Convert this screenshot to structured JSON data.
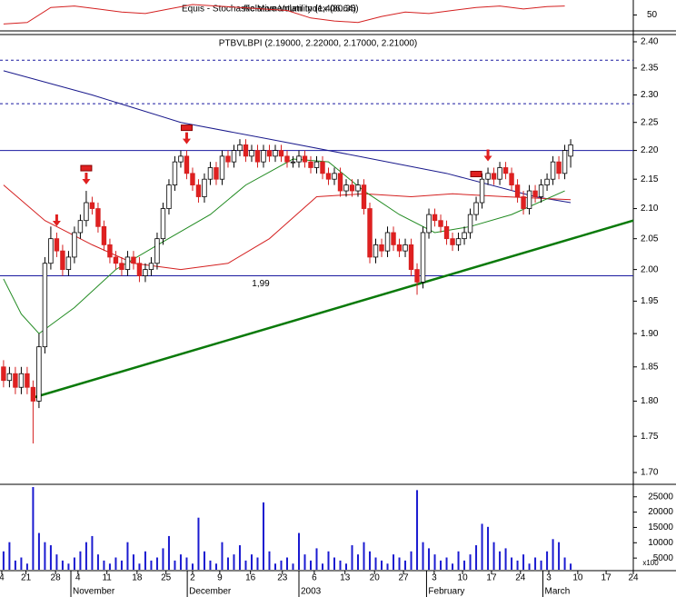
{
  "chart_data": {
    "type": "candlestick",
    "title": "PTBVLBPI (2.19000, 2.22000, 2.17000, 2.21000)",
    "indicator_titles": [
      "Equis - Stochastic Momentum Index (80.35)",
      "Relative Volatility (1,406.64)"
    ],
    "log_scale": true,
    "xlim": [
      -0.6,
      106.6
    ],
    "ylim": [
      1.7,
      2.4
    ],
    "yticks": [
      {
        "value": 2.4,
        "label": "2.40"
      },
      2.35,
      {
        "value": 2.3,
        "label": "2.30"
      },
      2.25,
      {
        "value": 2.2,
        "label": "2.20"
      },
      2.15,
      {
        "value": 2.1,
        "label": "2.10"
      },
      2.05,
      {
        "value": 2.0,
        "label": "2.00"
      },
      1.95,
      {
        "value": 1.9,
        "label": "1.90"
      },
      1.85,
      {
        "value": 1.8,
        "label": "1.80"
      },
      1.75,
      {
        "value": 1.7,
        "label": "1.70"
      }
    ],
    "xticks": [
      {
        "value": -0.3,
        "label": "4"
      },
      {
        "value": 3.8,
        "label": "21"
      },
      {
        "value": 8.8,
        "label": "28"
      },
      {
        "value": 12.6,
        "label": "4"
      },
      {
        "value": 17.5,
        "label": "11"
      },
      {
        "value": 22.6,
        "label": "18"
      },
      {
        "value": 27.5,
        "label": "25"
      },
      {
        "value": 32,
        "label": "2"
      },
      {
        "value": 36.6,
        "label": "9"
      },
      {
        "value": 41.8,
        "label": "16"
      },
      {
        "value": 47.2,
        "label": "23"
      },
      {
        "value": 52.6,
        "label": "6"
      },
      {
        "value": 57.8,
        "label": "13"
      },
      {
        "value": 62.8,
        "label": "20"
      },
      {
        "value": 67.7,
        "label": "27"
      },
      {
        "value": 72.9,
        "label": "3"
      },
      {
        "value": 77.7,
        "label": "10"
      },
      {
        "value": 82.6,
        "label": "17"
      },
      {
        "value": 87.5,
        "label": "24"
      },
      {
        "value": 92.3,
        "label": "3"
      },
      {
        "value": 97.2,
        "label": "10"
      },
      {
        "value": 102,
        "label": "17"
      },
      {
        "value": 106.6,
        "label": "24"
      }
    ],
    "months": [
      {
        "value": 11.4,
        "label": "November"
      },
      {
        "value": 31.1,
        "label": "December"
      },
      {
        "value": 50.0,
        "label": "2003"
      },
      {
        "value": 71.6,
        "label": "February"
      },
      {
        "value": 91.3,
        "label": "March"
      }
    ],
    "open": [
      1.85,
      1.83,
      1.84,
      1.82,
      1.84,
      1.82,
      1.8,
      1.88,
      2.01,
      2.05,
      2.03,
      2.0,
      2.02,
      2.06,
      2.08,
      2.11,
      2.1,
      2.07,
      2.04,
      2.02,
      2.01,
      2.0,
      2.02,
      2.01,
      1.99,
      2.0,
      2.01,
      2.05,
      2.1,
      2.14,
      2.18,
      2.19,
      2.16,
      2.14,
      2.12,
      2.15,
      2.17,
      2.15,
      2.19,
      2.18,
      2.2,
      2.21,
      2.19,
      2.2,
      2.18,
      2.2,
      2.19,
      2.2,
      2.19,
      2.18,
      2.18,
      2.19,
      2.18,
      2.17,
      2.18,
      2.16,
      2.15,
      2.16,
      2.13,
      2.14,
      2.13,
      2.14,
      2.1,
      2.02,
      2.04,
      2.03,
      2.06,
      2.04,
      2.03,
      2.04,
      2.0,
      1.98,
      2.06,
      2.09,
      2.08,
      2.07,
      2.05,
      2.04,
      2.05,
      2.06,
      2.09,
      2.11,
      2.15,
      2.16,
      2.15,
      2.17,
      2.16,
      2.14,
      2.12,
      2.1,
      2.13,
      2.12,
      2.14,
      2.15,
      2.18,
      2.16,
      2.19
    ],
    "high": [
      1.86,
      1.85,
      1.85,
      1.85,
      1.85,
      1.83,
      1.9,
      2.02,
      2.07,
      2.06,
      2.04,
      2.03,
      2.07,
      2.09,
      2.13,
      2.12,
      2.11,
      2.08,
      2.05,
      2.03,
      2.02,
      2.03,
      2.03,
      2.02,
      2.01,
      2.02,
      2.06,
      2.11,
      2.15,
      2.19,
      2.2,
      2.2,
      2.17,
      2.15,
      2.16,
      2.18,
      2.18,
      2.2,
      2.2,
      2.21,
      2.22,
      2.22,
      2.21,
      2.21,
      2.21,
      2.21,
      2.21,
      2.21,
      2.2,
      2.19,
      2.2,
      2.2,
      2.19,
      2.19,
      2.19,
      2.17,
      2.17,
      2.17,
      2.15,
      2.15,
      2.15,
      2.15,
      2.11,
      2.05,
      2.05,
      2.07,
      2.07,
      2.05,
      2.05,
      2.05,
      2.01,
      2.07,
      2.1,
      2.1,
      2.09,
      2.08,
      2.06,
      2.06,
      2.07,
      2.1,
      2.12,
      2.16,
      2.17,
      2.17,
      2.18,
      2.18,
      2.17,
      2.15,
      2.13,
      2.14,
      2.14,
      2.15,
      2.16,
      2.19,
      2.19,
      2.21,
      2.22
    ],
    "low": [
      1.82,
      1.82,
      1.81,
      1.81,
      1.81,
      1.74,
      1.79,
      1.87,
      2.0,
      2.02,
      1.99,
      1.99,
      2.01,
      2.05,
      2.07,
      2.09,
      2.06,
      2.03,
      2.01,
      2.0,
      1.99,
      1.99,
      2.0,
      1.98,
      1.98,
      1.99,
      2.0,
      2.04,
      2.09,
      2.13,
      2.17,
      2.15,
      2.13,
      2.11,
      2.11,
      2.14,
      2.14,
      2.14,
      2.17,
      2.17,
      2.19,
      2.18,
      2.18,
      2.17,
      2.17,
      2.18,
      2.18,
      2.18,
      2.17,
      2.17,
      2.17,
      2.17,
      2.16,
      2.16,
      2.15,
      2.14,
      2.14,
      2.12,
      2.12,
      2.12,
      2.12,
      2.09,
      2.01,
      2.01,
      2.02,
      2.02,
      2.03,
      2.02,
      2.02,
      1.99,
      1.96,
      1.97,
      2.05,
      2.07,
      2.06,
      2.04,
      2.03,
      2.03,
      2.04,
      2.05,
      2.08,
      2.1,
      2.14,
      2.14,
      2.14,
      2.15,
      2.13,
      2.11,
      2.09,
      2.09,
      2.11,
      2.11,
      2.13,
      2.14,
      2.15,
      2.15,
      2.17
    ],
    "close": [
      1.83,
      1.84,
      1.82,
      1.84,
      1.82,
      1.8,
      1.88,
      2.01,
      2.05,
      2.03,
      2.0,
      2.02,
      2.06,
      2.08,
      2.11,
      2.1,
      2.07,
      2.04,
      2.02,
      2.01,
      2.0,
      2.02,
      2.01,
      1.99,
      2.0,
      2.01,
      2.05,
      2.1,
      2.14,
      2.18,
      2.19,
      2.16,
      2.14,
      2.12,
      2.15,
      2.17,
      2.15,
      2.19,
      2.18,
      2.2,
      2.21,
      2.19,
      2.2,
      2.18,
      2.2,
      2.19,
      2.2,
      2.19,
      2.18,
      2.18,
      2.19,
      2.18,
      2.17,
      2.18,
      2.16,
      2.15,
      2.16,
      2.13,
      2.14,
      2.13,
      2.14,
      2.1,
      2.02,
      2.04,
      2.03,
      2.06,
      2.04,
      2.03,
      2.04,
      2.0,
      1.98,
      2.06,
      2.09,
      2.08,
      2.07,
      2.05,
      2.04,
      2.05,
      2.06,
      2.09,
      2.11,
      2.15,
      2.16,
      2.15,
      2.17,
      2.16,
      2.14,
      2.12,
      2.1,
      2.13,
      2.12,
      2.14,
      2.15,
      2.18,
      2.16,
      2.2,
      2.21
    ],
    "lines": [
      {
        "color": "#1a1a8c",
        "x": [
          0,
          15,
          30,
          45,
          60,
          75,
          90,
          96
        ],
        "values": [
          2.345,
          2.3,
          2.25,
          2.22,
          2.19,
          2.16,
          2.12,
          2.11
        ]
      },
      {
        "color": "#d42020",
        "x": [
          0,
          7,
          15,
          22,
          30,
          38,
          45,
          53,
          61,
          69,
          76,
          85,
          96
        ],
        "values": [
          2.14,
          2.08,
          2.04,
          2.01,
          2.0,
          2.01,
          2.05,
          2.12,
          2.125,
          2.12,
          2.125,
          2.12,
          2.115
        ]
      },
      {
        "color": "#208a20",
        "x": [
          0,
          3,
          6,
          12,
          19,
          27,
          35,
          41,
          49,
          55,
          61,
          67,
          73,
          79,
          86,
          95
        ],
        "values": [
          1.985,
          1.93,
          1.9,
          1.94,
          2.0,
          2.045,
          2.09,
          2.14,
          2.185,
          2.18,
          2.13,
          2.09,
          2.06,
          2.07,
          2.09,
          2.13
        ]
      },
      {
        "color": "#0a7a0a",
        "x": [
          5,
          106.6
        ],
        "values": [
          1.805,
          2.08
        ]
      }
    ],
    "levels": [
      {
        "value": 2.2,
        "color": "#1a1aa0"
      },
      {
        "value": 1.99,
        "color": "#1a1aa0",
        "label": "1,99"
      }
    ],
    "dashed_levels": [
      2.365,
      2.284
    ],
    "signals": [
      9,
      14,
      31,
      82
    ],
    "exit_boxes": [
      14,
      31,
      80
    ],
    "volume": {
      "ylim": [
        0,
        27000
      ],
      "yticks": [
        25000,
        20000,
        15000,
        10000,
        5000
      ],
      "unit": "x100",
      "color": "#1a1ad0",
      "values": [
        6000,
        9000,
        3000,
        4000,
        2000,
        27000,
        12000,
        9000,
        8000,
        5000,
        3000,
        2000,
        4000,
        6000,
        9000,
        11000,
        5000,
        3000,
        2000,
        4000,
        3000,
        9000,
        5000,
        2000,
        6000,
        3000,
        4000,
        7000,
        11000,
        3000,
        5000,
        4000,
        2000,
        17000,
        6000,
        3000,
        2000,
        9000,
        4000,
        5000,
        8000,
        3000,
        5000,
        4000,
        22000,
        6000,
        2000,
        3000,
        4000,
        2000,
        12000,
        5000,
        3000,
        7000,
        2000,
        6000,
        4000,
        3000,
        2000,
        8000,
        5000,
        9000,
        6000,
        4000,
        3000,
        2000,
        5000,
        4000,
        3000,
        6000,
        26000,
        9000,
        7000,
        5000,
        3000,
        4000,
        2000,
        6000,
        3000,
        5000,
        8000,
        15000,
        14000,
        9000,
        6000,
        7000,
        4000,
        3000,
        5000,
        2000,
        4000,
        3000,
        6000,
        10000,
        9000,
        4000,
        2000
      ]
    },
    "oscillator": {
      "ylim": [
        0,
        100
      ],
      "yticks": [
        50
      ],
      "color": "#d42020",
      "x": [
        0,
        4,
        8,
        12,
        16,
        20,
        24,
        28,
        32,
        36,
        40,
        44,
        48,
        52,
        56,
        60,
        64,
        68,
        72,
        76,
        80,
        84,
        88,
        92,
        95
      ],
      "values": [
        20,
        25,
        75,
        80,
        70,
        60,
        55,
        70,
        85,
        80,
        75,
        70,
        65,
        40,
        30,
        25,
        45,
        60,
        55,
        65,
        75,
        80,
        70,
        78,
        80
      ]
    }
  }
}
